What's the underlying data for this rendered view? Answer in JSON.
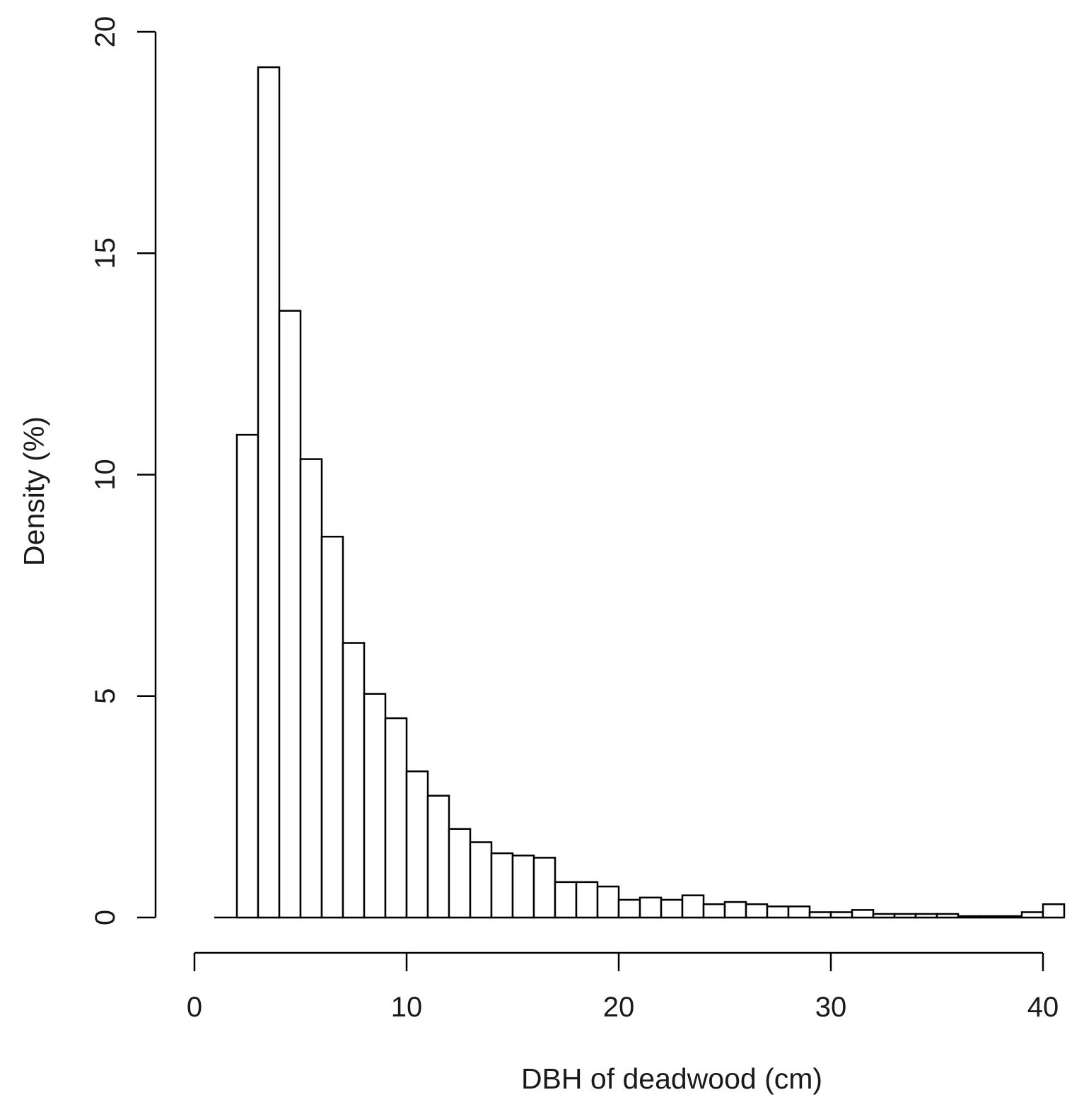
{
  "chart_data": {
    "type": "bar",
    "subtype": "histogram",
    "xlabel": "DBH of deadwood (cm)",
    "ylabel": "Density (%)",
    "xlim": [
      0,
      40
    ],
    "ylim": [
      0,
      20
    ],
    "x_ticks": [
      0,
      10,
      20,
      30,
      40
    ],
    "y_ticks": [
      0,
      5,
      10,
      15,
      20
    ],
    "grid": false,
    "legend": "none",
    "bar_fill": "#ffffff",
    "bar_stroke": "#000000",
    "bin_width": 1,
    "bin_starts": [
      2,
      3,
      4,
      5,
      6,
      7,
      8,
      9,
      10,
      11,
      12,
      13,
      14,
      15,
      16,
      17,
      18,
      19,
      20,
      21,
      22,
      23,
      24,
      25,
      26,
      27,
      28,
      29,
      30,
      31,
      32,
      33,
      34,
      35,
      36,
      37,
      38,
      39,
      40
    ],
    "values": [
      10.9,
      19.2,
      13.7,
      10.35,
      8.6,
      6.2,
      5.05,
      4.5,
      3.3,
      2.75,
      2.0,
      1.7,
      1.45,
      1.4,
      1.35,
      0.8,
      0.8,
      0.7,
      0.4,
      0.45,
      0.4,
      0.5,
      0.3,
      0.35,
      0.3,
      0.25,
      0.25,
      0.12,
      0.12,
      0.17,
      0.08,
      0.08,
      0.08,
      0.08,
      0.03,
      0.03,
      0.03,
      0.12,
      0.3
    ]
  }
}
